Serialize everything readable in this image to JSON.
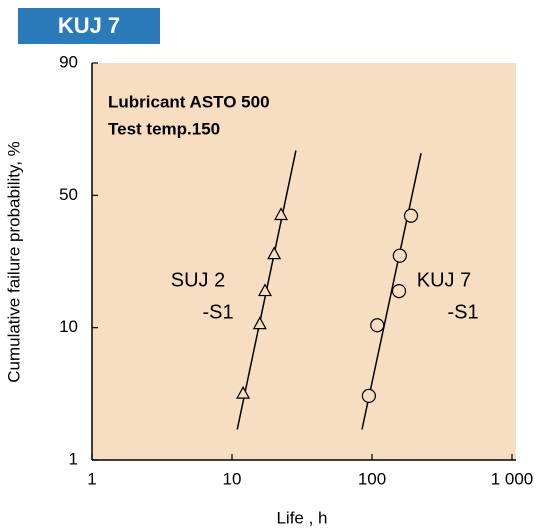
{
  "chart_data": {
    "type": "scatter",
    "badge": "KUJ 7",
    "notes": [
      "Lubricant  ASTO 500",
      "Test  temp.150"
    ],
    "x_label": "Life , h",
    "y_label": "Cumulative failure probability, %",
    "xscale": "log",
    "yscale": "probability",
    "xlim": [
      1,
      1000
    ],
    "xticks": [
      1,
      10,
      100,
      {
        "value": 1000,
        "label": "1 000"
      }
    ],
    "ylim": [
      1,
      90
    ],
    "yticks": [
      1,
      10,
      50,
      90
    ],
    "background": "#f7dec2",
    "series": [
      {
        "label_lines": [
          "SUJ 2",
          "-S1"
        ],
        "marker": "triangle",
        "color": "#000000",
        "x": [
          12.0,
          15.8,
          17.2,
          20.0,
          22.4
        ],
        "values": [
          3.2,
          10.5,
          15.7,
          24.6,
          39.6
        ],
        "fit_x": [
          10.9,
          28.6
        ],
        "fit_y": [
          1.7,
          61
        ]
      },
      {
        "label_lines": [
          "KUJ 7",
          "-S1"
        ],
        "marker": "circle",
        "color": "#000000",
        "x": [
          95,
          109,
          156,
          158,
          190
        ],
        "values": [
          3.05,
          10.3,
          15.6,
          24,
          39
        ],
        "fit_x": [
          84.8,
          224
        ],
        "fit_y": [
          1.7,
          60.3
        ]
      }
    ]
  }
}
